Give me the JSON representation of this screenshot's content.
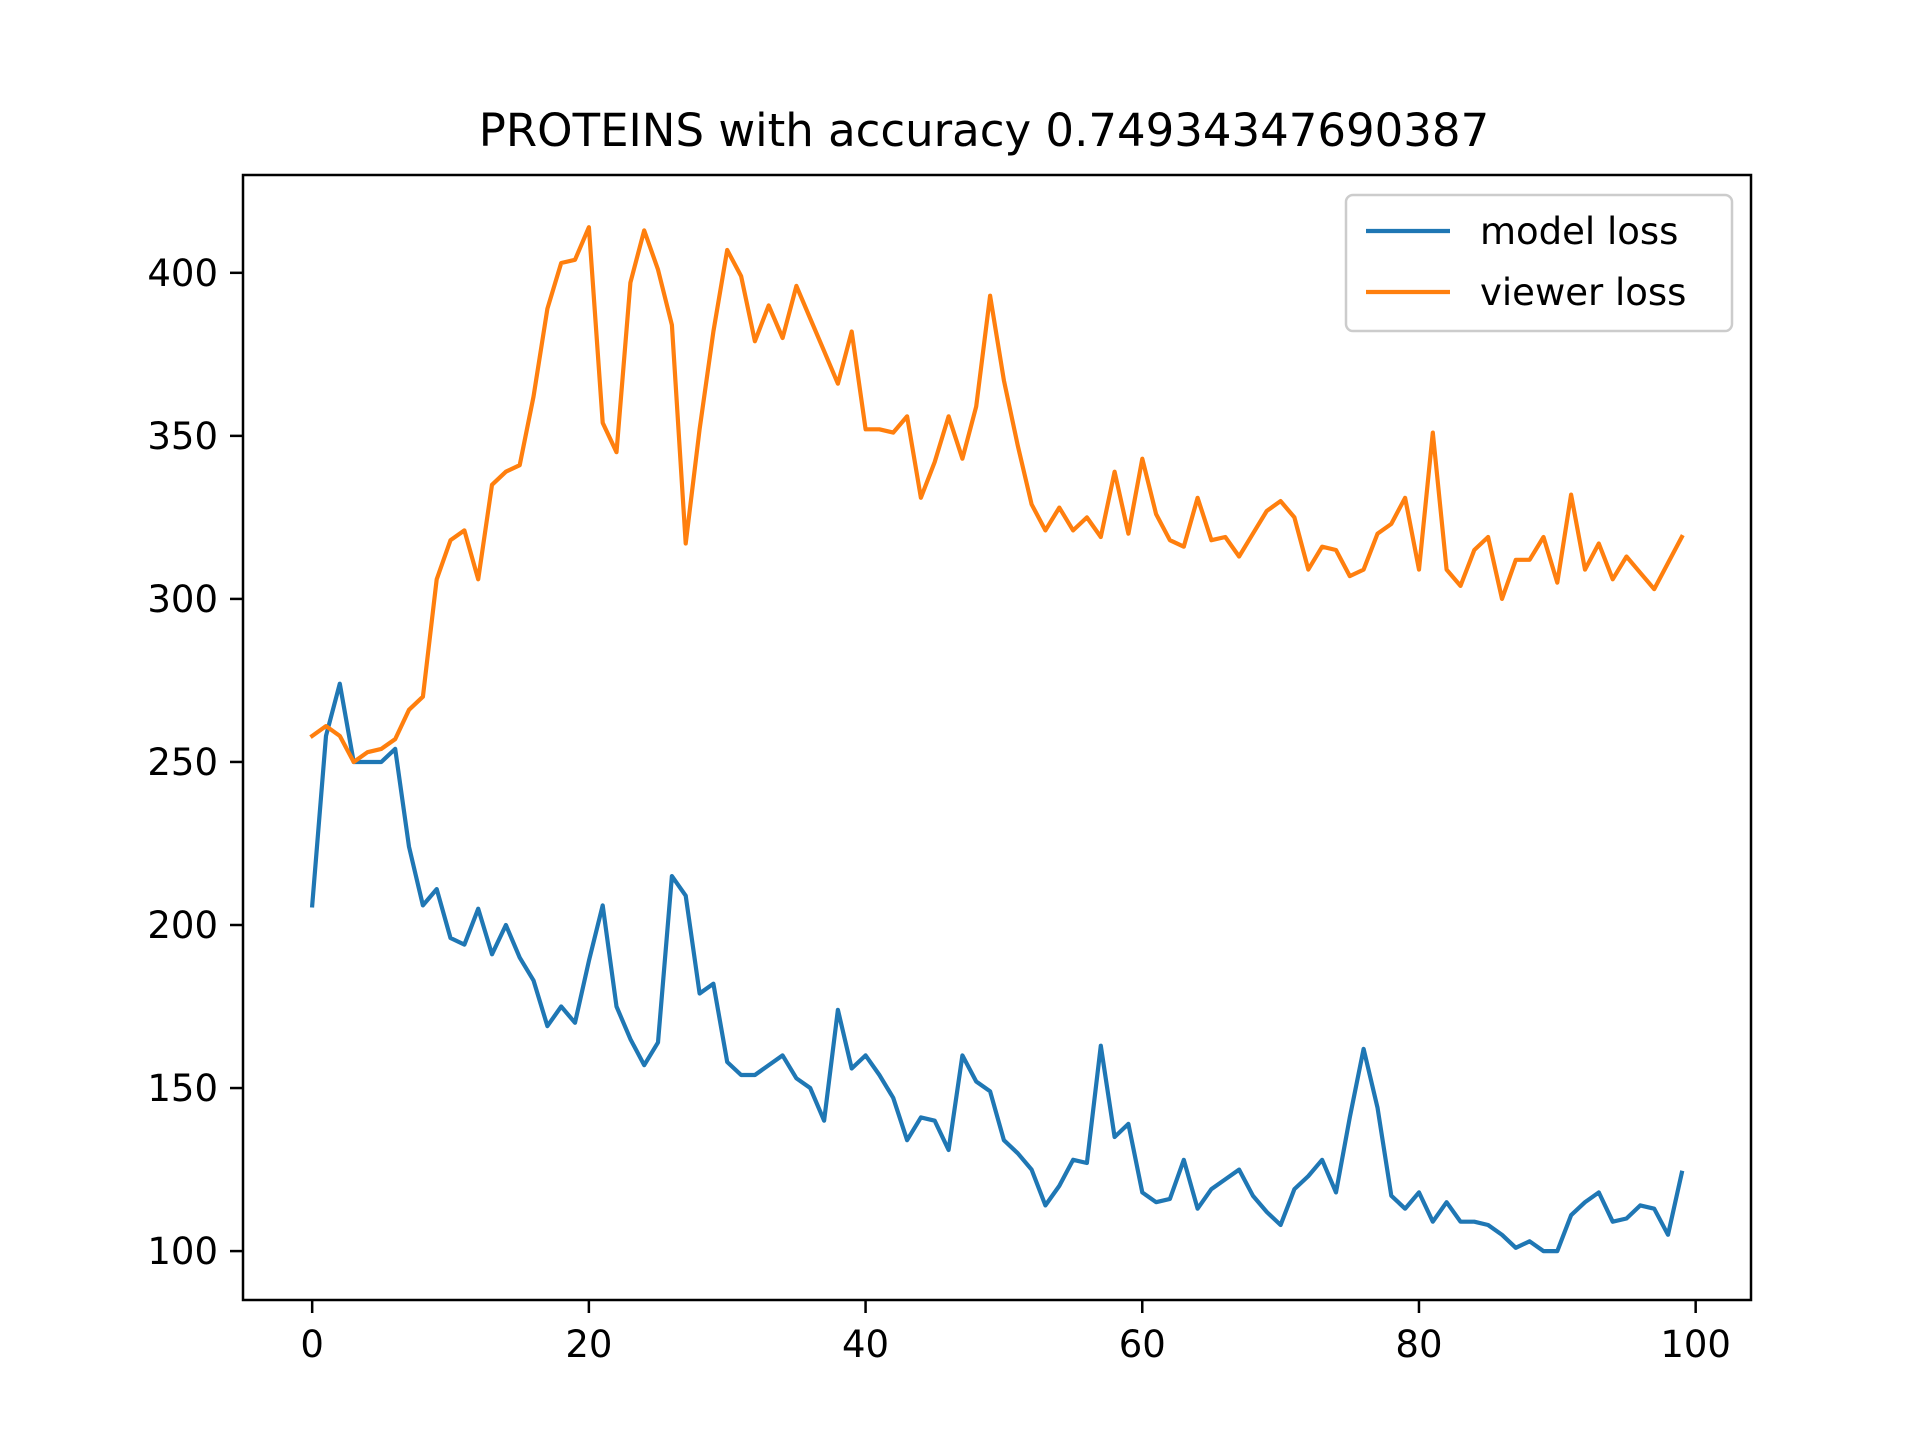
{
  "colors": {
    "model_loss": "#1f77b4",
    "viewer_loss": "#ff7f0e",
    "axes": "#000000",
    "legend_border": "#cccccc"
  },
  "chart_data": {
    "type": "line",
    "title": "PROTEINS with accuracy 0.74934347690387",
    "xlabel": "",
    "ylabel": "",
    "xlim": [
      -5,
      104
    ],
    "ylim": [
      85,
      430
    ],
    "x_ticks": [
      0,
      20,
      40,
      60,
      80,
      100
    ],
    "y_ticks": [
      100,
      150,
      200,
      250,
      300,
      350,
      400
    ],
    "grid": false,
    "legend_position": "top-right",
    "x": [
      0,
      1,
      2,
      3,
      4,
      5,
      6,
      7,
      8,
      9,
      10,
      11,
      12,
      13,
      14,
      15,
      16,
      17,
      18,
      19,
      20,
      21,
      22,
      23,
      24,
      25,
      26,
      27,
      28,
      29,
      30,
      31,
      32,
      33,
      34,
      35,
      36,
      37,
      38,
      39,
      40,
      41,
      42,
      43,
      44,
      45,
      46,
      47,
      48,
      49,
      50,
      51,
      52,
      53,
      54,
      55,
      56,
      57,
      58,
      59,
      60,
      61,
      62,
      63,
      64,
      65,
      66,
      67,
      68,
      69,
      70,
      71,
      72,
      73,
      74,
      75,
      76,
      77,
      78,
      79,
      80,
      81,
      82,
      83,
      84,
      85,
      86,
      87,
      88,
      89,
      90,
      91,
      92,
      93,
      94,
      95,
      96,
      97,
      98,
      99
    ],
    "series": [
      {
        "name": "model loss",
        "color": "#1f77b4",
        "values": [
          206,
          258,
          274,
          250,
          250,
          250,
          254,
          224,
          206,
          211,
          196,
          194,
          205,
          191,
          200,
          190,
          183,
          169,
          175,
          170,
          189,
          206,
          175,
          165,
          157,
          164,
          215,
          209,
          179,
          182,
          158,
          154,
          154,
          157,
          160,
          153,
          150,
          140,
          174,
          156,
          160,
          154,
          147,
          134,
          141,
          140,
          131,
          160,
          152,
          149,
          134,
          130,
          125,
          114,
          120,
          128,
          127,
          163,
          135,
          139,
          118,
          115,
          116,
          128,
          113,
          119,
          122,
          125,
          117,
          112,
          108,
          119,
          123,
          128,
          118,
          141,
          162,
          144,
          117,
          113,
          118,
          109,
          115,
          109,
          109,
          108,
          105,
          101,
          103,
          100,
          100,
          111,
          115,
          118,
          109,
          110,
          114,
          113,
          105,
          124
        ]
      },
      {
        "name": "viewer loss",
        "color": "#ff7f0e",
        "values": [
          258,
          261,
          258,
          250,
          253,
          254,
          257,
          266,
          270,
          306,
          318,
          321,
          306,
          335,
          339,
          341,
          362,
          389,
          403,
          404,
          414,
          354,
          345,
          397,
          413,
          401,
          384,
          317,
          352,
          382,
          407,
          399,
          379,
          390,
          380,
          396,
          386,
          376,
          366,
          382,
          352,
          352,
          351,
          356,
          331,
          342,
          356,
          343,
          359,
          393,
          367,
          347,
          329,
          321,
          328,
          321,
          325,
          319,
          339,
          320,
          343,
          326,
          318,
          316,
          331,
          318,
          319,
          313,
          320,
          327,
          330,
          325,
          309,
          316,
          315,
          307,
          309,
          320,
          323,
          331,
          309,
          351,
          309,
          304,
          315,
          319,
          300,
          312,
          312,
          319,
          305,
          332,
          309,
          317,
          306,
          313,
          308,
          303,
          311,
          319
        ]
      }
    ]
  }
}
